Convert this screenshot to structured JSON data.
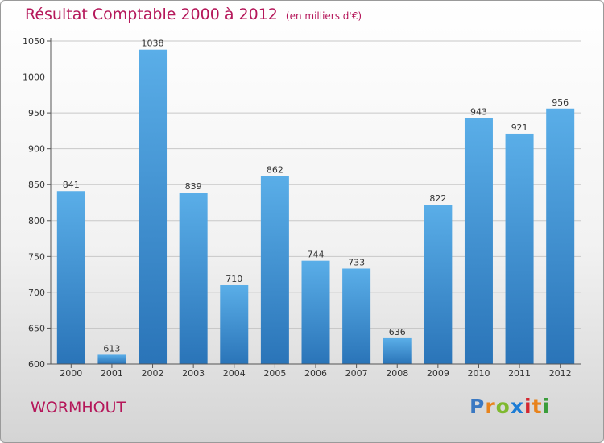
{
  "header": {
    "title": "Résultat Comptable 2000 à 2012",
    "unit": "(en milliers d'€)"
  },
  "footer": {
    "city": "WORMHOUT",
    "logo_letters": [
      "P",
      "r",
      "o",
      "x",
      "i",
      "t",
      "i"
    ],
    "logo_colors": [
      "#3a78c2",
      "#e8831c",
      "#7fb92f",
      "#1c7cd5",
      "#d4272f",
      "#e8831c",
      "#3a9d3a"
    ]
  },
  "colors": {
    "bar_top": "#5aaee8",
    "bar_bottom": "#2a74b8",
    "axis": "#555555",
    "grid": "#c8c8c8",
    "title": "#b5175a"
  },
  "chart_data": {
    "type": "bar",
    "title": "Résultat Comptable 2000 à 2012",
    "xlabel": "",
    "ylabel": "",
    "categories": [
      "2000",
      "2001",
      "2002",
      "2003",
      "2004",
      "2005",
      "2006",
      "2007",
      "2008",
      "2009",
      "2010",
      "2011",
      "2012"
    ],
    "values": [
      841,
      613,
      1038,
      839,
      710,
      862,
      744,
      733,
      636,
      822,
      943,
      921,
      956
    ],
    "ylim": [
      600,
      1050
    ],
    "yticks": [
      600,
      650,
      700,
      750,
      800,
      850,
      900,
      950,
      1000,
      1050
    ],
    "grid": true
  }
}
